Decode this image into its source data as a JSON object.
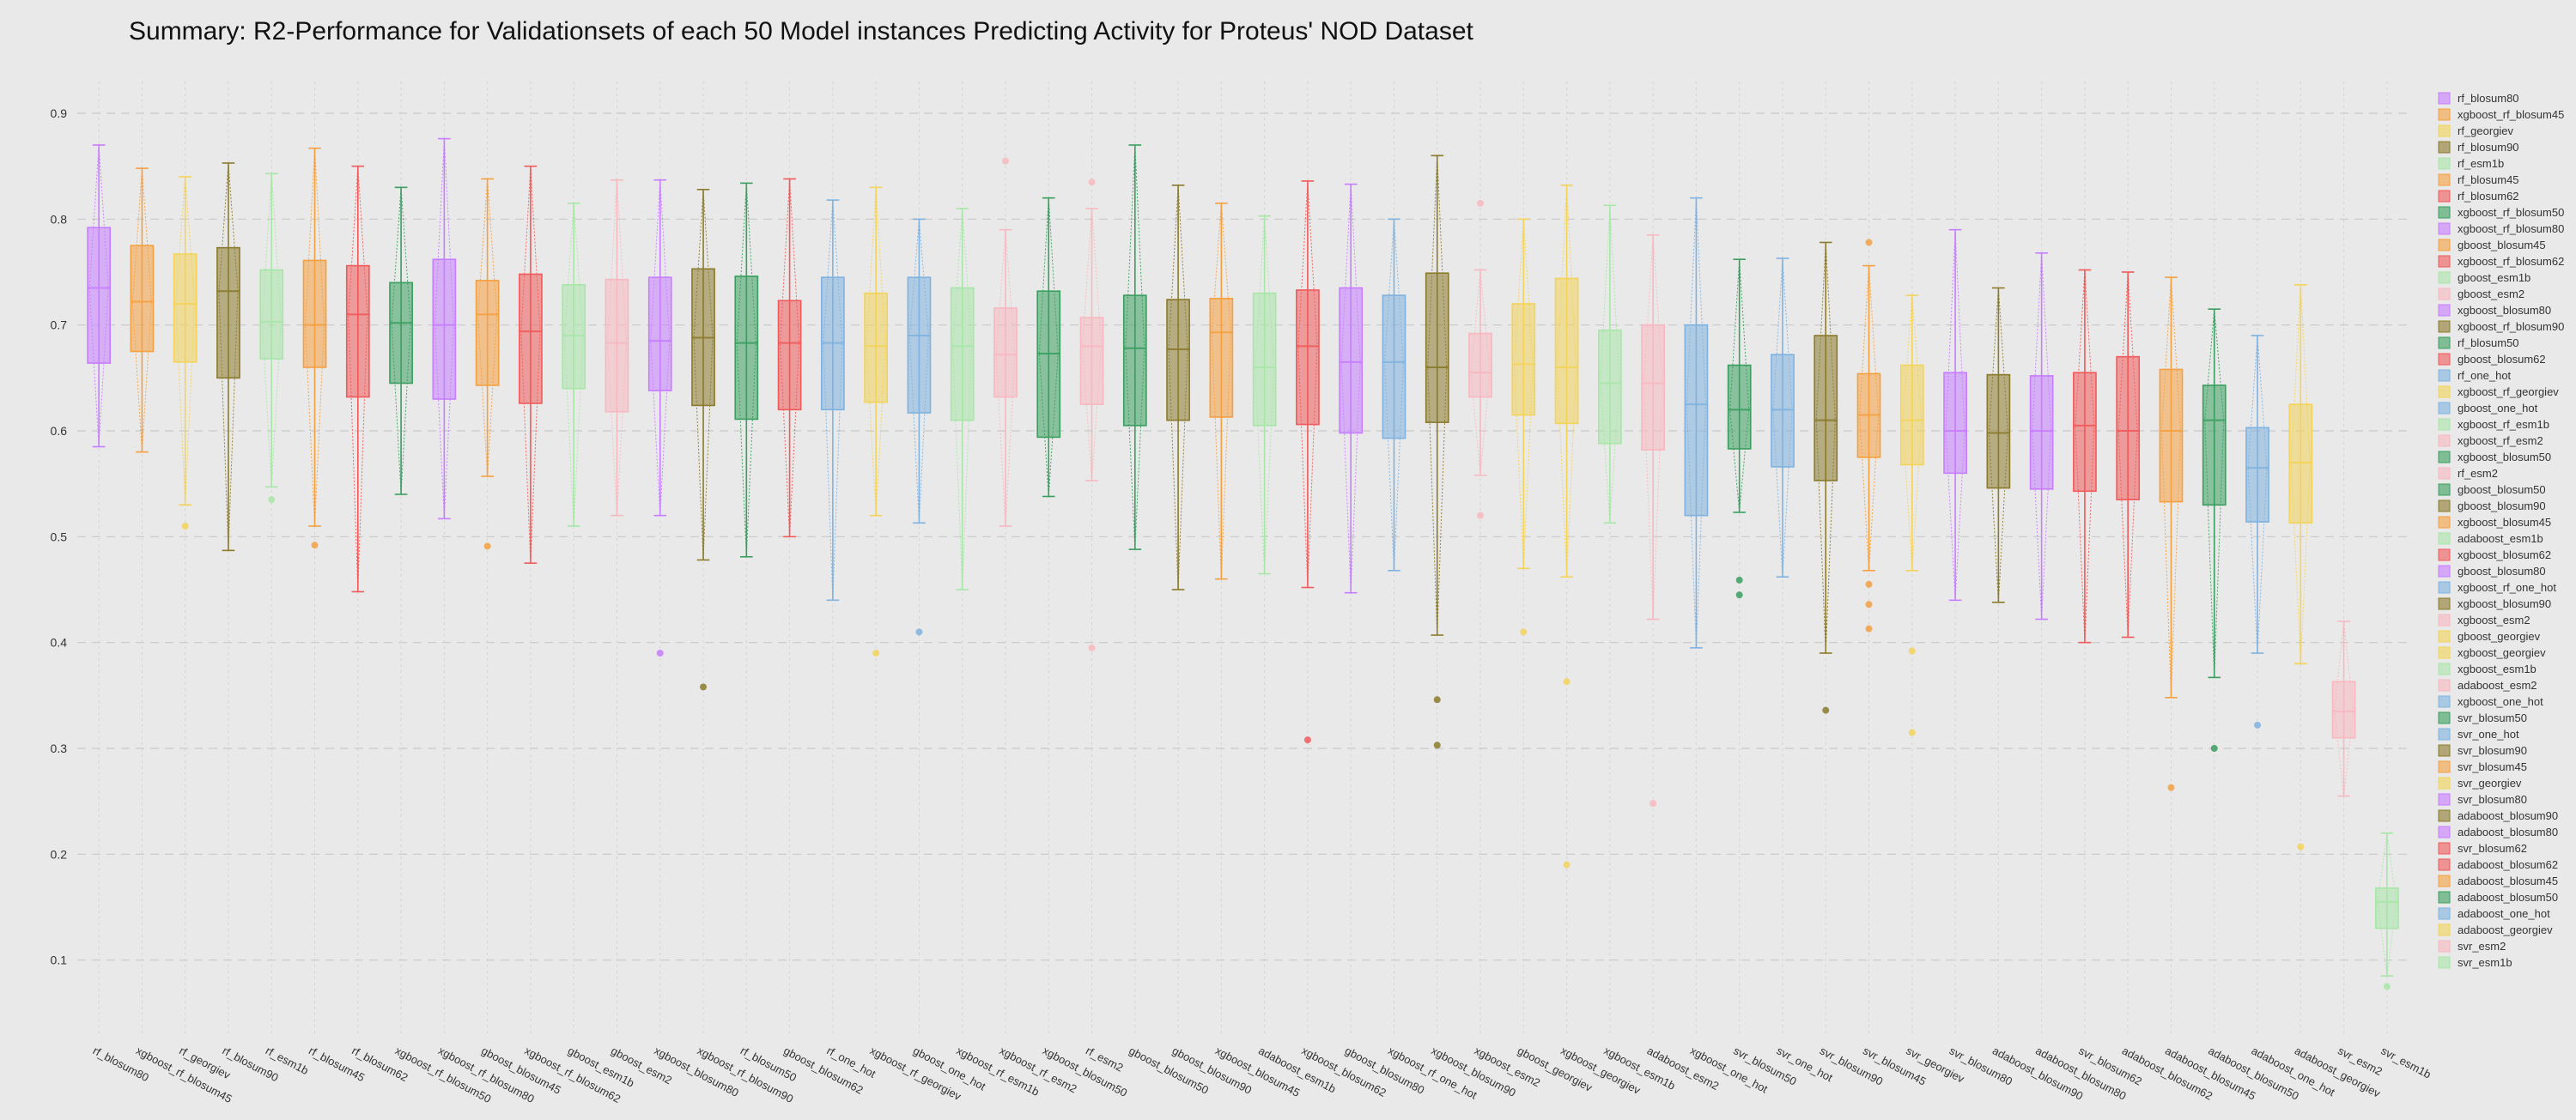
{
  "chart_data": {
    "type": "box",
    "title": "Summary: R2-Performance for Validationsets of each 50 Model instances   Predicting Activity for Proteus' NOD Dataset",
    "xlabel": "",
    "ylabel": "",
    "ylim": [
      0.03,
      0.93
    ],
    "yticks": [
      0.1,
      0.2,
      0.3,
      0.4,
      0.5,
      0.6,
      0.7,
      0.8,
      0.9
    ],
    "ytick_labels": [
      "0.1",
      "0.2",
      "0.3",
      "0.4",
      "0.5",
      "0.6",
      "0.7",
      "0.8",
      "0.9"
    ],
    "grid": true,
    "legend_position": "right",
    "series": [
      {
        "name": "rf_blosum80",
        "color": "#c77dff",
        "min": 0.585,
        "q1": 0.664,
        "median": 0.735,
        "q3": 0.792,
        "max": 0.87,
        "outliers": []
      },
      {
        "name": "xgboost_rf_blosum45",
        "color": "#f5a040",
        "min": 0.58,
        "q1": 0.675,
        "median": 0.722,
        "q3": 0.775,
        "max": 0.848,
        "outliers": []
      },
      {
        "name": "rf_georgiev",
        "color": "#f3d35a",
        "min": 0.53,
        "q1": 0.665,
        "median": 0.72,
        "q3": 0.767,
        "max": 0.84,
        "outliers": [
          0.51
        ]
      },
      {
        "name": "rf_blosum90",
        "color": "#8b7a2b",
        "min": 0.487,
        "q1": 0.65,
        "median": 0.732,
        "q3": 0.773,
        "max": 0.853,
        "outliers": []
      },
      {
        "name": "rf_esm1b",
        "color": "#a8e6a8",
        "min": 0.547,
        "q1": 0.668,
        "median": 0.703,
        "q3": 0.752,
        "max": 0.843,
        "outliers": [
          0.535
        ]
      },
      {
        "name": "rf_blosum45",
        "color": "#f5a040",
        "min": 0.51,
        "q1": 0.66,
        "median": 0.7,
        "q3": 0.761,
        "max": 0.867,
        "outliers": [
          0.492
        ]
      },
      {
        "name": "rf_blosum62",
        "color": "#f05a5a",
        "min": 0.448,
        "q1": 0.632,
        "median": 0.71,
        "q3": 0.756,
        "max": 0.85,
        "outliers": []
      },
      {
        "name": "xgboost_rf_blosum50",
        "color": "#3a9e5f",
        "min": 0.54,
        "q1": 0.645,
        "median": 0.702,
        "q3": 0.74,
        "max": 0.83,
        "outliers": []
      },
      {
        "name": "xgboost_rf_blosum80",
        "color": "#c77dff",
        "min": 0.517,
        "q1": 0.63,
        "median": 0.7,
        "q3": 0.762,
        "max": 0.876,
        "outliers": []
      },
      {
        "name": "gboost_blosum45",
        "color": "#f5a040",
        "min": 0.557,
        "q1": 0.643,
        "median": 0.71,
        "q3": 0.742,
        "max": 0.838,
        "outliers": [
          0.491
        ]
      },
      {
        "name": "xgboost_rf_blosum62",
        "color": "#f05a5a",
        "min": 0.475,
        "q1": 0.626,
        "median": 0.694,
        "q3": 0.748,
        "max": 0.85,
        "outliers": []
      },
      {
        "name": "gboost_esm1b",
        "color": "#a8e6a8",
        "min": 0.51,
        "q1": 0.64,
        "median": 0.69,
        "q3": 0.738,
        "max": 0.815,
        "outliers": []
      },
      {
        "name": "gboost_esm2",
        "color": "#f7b8c0",
        "min": 0.52,
        "q1": 0.618,
        "median": 0.683,
        "q3": 0.743,
        "max": 0.837,
        "outliers": []
      },
      {
        "name": "xgboost_blosum80",
        "color": "#c77dff",
        "min": 0.52,
        "q1": 0.638,
        "median": 0.685,
        "q3": 0.745,
        "max": 0.837,
        "outliers": [
          0.39
        ]
      },
      {
        "name": "xgboost_rf_blosum90",
        "color": "#8b7a2b",
        "min": 0.478,
        "q1": 0.624,
        "median": 0.688,
        "q3": 0.753,
        "max": 0.828,
        "outliers": [
          0.358
        ]
      },
      {
        "name": "rf_blosum50",
        "color": "#3a9e5f",
        "min": 0.481,
        "q1": 0.611,
        "median": 0.683,
        "q3": 0.746,
        "max": 0.834,
        "outliers": []
      },
      {
        "name": "gboost_blosum62",
        "color": "#f05a5a",
        "min": 0.5,
        "q1": 0.62,
        "median": 0.683,
        "q3": 0.723,
        "max": 0.838,
        "outliers": []
      },
      {
        "name": "rf_one_hot",
        "color": "#7fb2e0",
        "min": 0.44,
        "q1": 0.62,
        "median": 0.683,
        "q3": 0.745,
        "max": 0.818,
        "outliers": []
      },
      {
        "name": "xgboost_rf_georgiev",
        "color": "#f3d35a",
        "min": 0.52,
        "q1": 0.627,
        "median": 0.68,
        "q3": 0.73,
        "max": 0.83,
        "outliers": [
          0.39
        ]
      },
      {
        "name": "gboost_one_hot",
        "color": "#7fb2e0",
        "min": 0.513,
        "q1": 0.617,
        "median": 0.69,
        "q3": 0.745,
        "max": 0.8,
        "outliers": [
          0.41
        ]
      },
      {
        "name": "xgboost_rf_esm1b",
        "color": "#a8e6a8",
        "min": 0.45,
        "q1": 0.61,
        "median": 0.68,
        "q3": 0.735,
        "max": 0.81,
        "outliers": []
      },
      {
        "name": "xgboost_rf_esm2",
        "color": "#f7b8c0",
        "min": 0.51,
        "q1": 0.632,
        "median": 0.672,
        "q3": 0.716,
        "max": 0.79,
        "outliers": [
          0.855
        ]
      },
      {
        "name": "xgboost_blosum50",
        "color": "#3a9e5f",
        "min": 0.538,
        "q1": 0.594,
        "median": 0.673,
        "q3": 0.732,
        "max": 0.82,
        "outliers": []
      },
      {
        "name": "rf_esm2",
        "color": "#f7b8c0",
        "min": 0.553,
        "q1": 0.625,
        "median": 0.68,
        "q3": 0.707,
        "max": 0.81,
        "outliers": [
          0.395,
          0.835
        ]
      },
      {
        "name": "gboost_blosum50",
        "color": "#3a9e5f",
        "min": 0.488,
        "q1": 0.605,
        "median": 0.678,
        "q3": 0.728,
        "max": 0.87,
        "outliers": []
      },
      {
        "name": "gboost_blosum90",
        "color": "#8b7a2b",
        "min": 0.45,
        "q1": 0.61,
        "median": 0.677,
        "q3": 0.724,
        "max": 0.832,
        "outliers": []
      },
      {
        "name": "xgboost_blosum45",
        "color": "#f5a040",
        "min": 0.46,
        "q1": 0.613,
        "median": 0.693,
        "q3": 0.725,
        "max": 0.815,
        "outliers": []
      },
      {
        "name": "adaboost_esm1b",
        "color": "#a8e6a8",
        "min": 0.465,
        "q1": 0.605,
        "median": 0.66,
        "q3": 0.73,
        "max": 0.803,
        "outliers": []
      },
      {
        "name": "xgboost_blosum62",
        "color": "#f05a5a",
        "min": 0.452,
        "q1": 0.606,
        "median": 0.68,
        "q3": 0.733,
        "max": 0.836,
        "outliers": [
          0.308
        ]
      },
      {
        "name": "gboost_blosum80",
        "color": "#c77dff",
        "min": 0.447,
        "q1": 0.598,
        "median": 0.665,
        "q3": 0.735,
        "max": 0.833,
        "outliers": []
      },
      {
        "name": "xgboost_rf_one_hot",
        "color": "#7fb2e0",
        "min": 0.468,
        "q1": 0.593,
        "median": 0.665,
        "q3": 0.728,
        "max": 0.8,
        "outliers": []
      },
      {
        "name": "xgboost_blosum90",
        "color": "#8b7a2b",
        "min": 0.407,
        "q1": 0.608,
        "median": 0.66,
        "q3": 0.749,
        "max": 0.86,
        "outliers": [
          0.346,
          0.303
        ]
      },
      {
        "name": "xgboost_esm2",
        "color": "#f7b8c0",
        "min": 0.558,
        "q1": 0.632,
        "median": 0.655,
        "q3": 0.692,
        "max": 0.752,
        "outliers": [
          0.52,
          0.815
        ]
      },
      {
        "name": "gboost_georgiev",
        "color": "#f3d35a",
        "min": 0.47,
        "q1": 0.615,
        "median": 0.663,
        "q3": 0.72,
        "max": 0.8,
        "outliers": [
          0.41
        ]
      },
      {
        "name": "xgboost_georgiev",
        "color": "#f3d35a",
        "min": 0.462,
        "q1": 0.607,
        "median": 0.66,
        "q3": 0.744,
        "max": 0.832,
        "outliers": [
          0.363,
          0.19
        ]
      },
      {
        "name": "xgboost_esm1b",
        "color": "#a8e6a8",
        "min": 0.513,
        "q1": 0.588,
        "median": 0.645,
        "q3": 0.695,
        "max": 0.813,
        "outliers": []
      },
      {
        "name": "adaboost_esm2",
        "color": "#f7b8c0",
        "min": 0.422,
        "q1": 0.582,
        "median": 0.645,
        "q3": 0.7,
        "max": 0.785,
        "outliers": [
          0.248
        ]
      },
      {
        "name": "xgboost_one_hot",
        "color": "#7fb2e0",
        "min": 0.395,
        "q1": 0.52,
        "median": 0.625,
        "q3": 0.7,
        "max": 0.82,
        "outliers": []
      },
      {
        "name": "svr_blosum50",
        "color": "#3a9e5f",
        "min": 0.523,
        "q1": 0.583,
        "median": 0.62,
        "q3": 0.662,
        "max": 0.762,
        "outliers": [
          0.459,
          0.445
        ]
      },
      {
        "name": "svr_one_hot",
        "color": "#7fb2e0",
        "min": 0.462,
        "q1": 0.566,
        "median": 0.62,
        "q3": 0.672,
        "max": 0.763,
        "outliers": []
      },
      {
        "name": "svr_blosum90",
        "color": "#8b7a2b",
        "min": 0.39,
        "q1": 0.553,
        "median": 0.61,
        "q3": 0.69,
        "max": 0.778,
        "outliers": [
          0.336
        ]
      },
      {
        "name": "svr_blosum45",
        "color": "#f5a040",
        "min": 0.468,
        "q1": 0.575,
        "median": 0.615,
        "q3": 0.654,
        "max": 0.756,
        "outliers": [
          0.778,
          0.455,
          0.436,
          0.413
        ]
      },
      {
        "name": "svr_georgiev",
        "color": "#f3d35a",
        "min": 0.468,
        "q1": 0.568,
        "median": 0.61,
        "q3": 0.662,
        "max": 0.728,
        "outliers": [
          0.392,
          0.315
        ]
      },
      {
        "name": "svr_blosum80",
        "color": "#c77dff",
        "min": 0.44,
        "q1": 0.56,
        "median": 0.6,
        "q3": 0.655,
        "max": 0.79,
        "outliers": []
      },
      {
        "name": "adaboost_blosum90",
        "color": "#8b7a2b",
        "min": 0.438,
        "q1": 0.546,
        "median": 0.598,
        "q3": 0.653,
        "max": 0.735,
        "outliers": []
      },
      {
        "name": "adaboost_blosum80",
        "color": "#c77dff",
        "min": 0.422,
        "q1": 0.545,
        "median": 0.6,
        "q3": 0.652,
        "max": 0.768,
        "outliers": []
      },
      {
        "name": "svr_blosum62",
        "color": "#f05a5a",
        "min": 0.4,
        "q1": 0.543,
        "median": 0.605,
        "q3": 0.655,
        "max": 0.752,
        "outliers": []
      },
      {
        "name": "adaboost_blosum62",
        "color": "#f05a5a",
        "min": 0.405,
        "q1": 0.535,
        "median": 0.6,
        "q3": 0.67,
        "max": 0.75,
        "outliers": []
      },
      {
        "name": "adaboost_blosum45",
        "color": "#f5a040",
        "min": 0.348,
        "q1": 0.533,
        "median": 0.6,
        "q3": 0.658,
        "max": 0.745,
        "outliers": [
          0.263
        ]
      },
      {
        "name": "adaboost_blosum50",
        "color": "#3a9e5f",
        "min": 0.367,
        "q1": 0.53,
        "median": 0.61,
        "q3": 0.643,
        "max": 0.715,
        "outliers": [
          0.3
        ]
      },
      {
        "name": "adaboost_one_hot",
        "color": "#7fb2e0",
        "min": 0.39,
        "q1": 0.514,
        "median": 0.565,
        "q3": 0.603,
        "max": 0.69,
        "outliers": [
          0.322
        ]
      },
      {
        "name": "adaboost_georgiev",
        "color": "#f3d35a",
        "min": 0.38,
        "q1": 0.513,
        "median": 0.57,
        "q3": 0.625,
        "max": 0.738,
        "outliers": [
          0.207
        ]
      },
      {
        "name": "svr_esm2",
        "color": "#f7b8c0",
        "min": 0.255,
        "q1": 0.31,
        "median": 0.335,
        "q3": 0.363,
        "max": 0.42,
        "outliers": []
      },
      {
        "name": "svr_esm1b",
        "color": "#a8e6a8",
        "min": 0.085,
        "q1": 0.13,
        "median": 0.155,
        "q3": 0.168,
        "max": 0.22,
        "outliers": [
          0.075
        ]
      }
    ],
    "legend": [
      "rf_blosum80",
      "xgboost_rf_blosum45",
      "rf_georgiev",
      "rf_blosum90",
      "rf_esm1b",
      "rf_blosum45",
      "rf_blosum62",
      "xgboost_rf_blosum50",
      "xgboost_rf_blosum80",
      "gboost_blosum45",
      "xgboost_rf_blosum62",
      "gboost_esm1b",
      "gboost_esm2",
      "xgboost_blosum80",
      "xgboost_rf_blosum90",
      "rf_blosum50",
      "gboost_blosum62",
      "rf_one_hot",
      "xgboost_rf_georgiev",
      "gboost_one_hot",
      "xgboost_rf_esm1b",
      "xgboost_rf_esm2",
      "xgboost_blosum50",
      "rf_esm2",
      "gboost_blosum50",
      "gboost_blosum90",
      "xgboost_blosum45",
      "adaboost_esm1b",
      "xgboost_blosum62",
      "gboost_blosum80",
      "xgboost_rf_one_hot",
      "xgboost_blosum90",
      "xgboost_esm2",
      "gboost_georgiev",
      "xgboost_georgiev",
      "xgboost_esm1b",
      "adaboost_esm2",
      "xgboost_one_hot",
      "svr_blosum50",
      "svr_one_hot",
      "svr_blosum90",
      "svr_blosum45",
      "svr_georgiev",
      "svr_blosum80",
      "adaboost_blosum90",
      "adaboost_blosum80",
      "svr_blosum62",
      "adaboost_blosum62",
      "adaboost_blosum45",
      "adaboost_blosum50",
      "adaboost_one_hot",
      "adaboost_georgiev",
      "svr_esm2",
      "svr_esm1b"
    ]
  }
}
